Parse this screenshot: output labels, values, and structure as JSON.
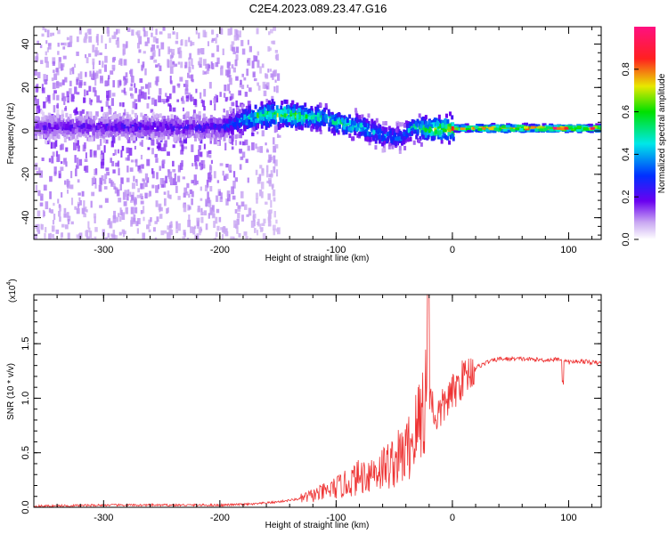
{
  "figure_title": "C2E4.2023.089.23.47.G16",
  "chart_data": [
    {
      "type": "heatmap",
      "title": "C2E4.2023.089.23.47.G16",
      "xlabel": "Height of straight line (km)",
      "ylabel": "Frequency (Hz)",
      "xlim": [
        -360,
        128
      ],
      "ylim": [
        -50,
        48
      ],
      "x_ticks": [
        -300,
        -200,
        -100,
        0,
        100
      ],
      "x_tick_labels": [
        "-300",
        "-200",
        "-100",
        "0",
        "100"
      ],
      "y_ticks": [
        -40,
        -20,
        0,
        20,
        40
      ],
      "y_tick_labels": [
        "-40",
        "-20",
        "0",
        "20",
        "40"
      ],
      "colorbar": {
        "label": "Normalized spectral amplitude",
        "range": [
          0,
          1
        ],
        "ticks": [
          0.0,
          0.2,
          0.4,
          0.6,
          0.8
        ],
        "tick_labels": [
          "0.0",
          "0.2",
          "0.4",
          "0.6",
          "0.8"
        ],
        "colormap": "rainbow (white-violet-blue-cyan-green-yellow-red-magenta)"
      },
      "ridge": {
        "x": [
          -360,
          -300,
          -200,
          -170,
          -150,
          -130,
          -110,
          -100,
          -80,
          -60,
          -45,
          -35,
          -25,
          0,
          50,
          100,
          128
        ],
        "frequency": [
          2,
          2,
          2,
          7,
          8,
          7,
          6,
          4,
          2,
          -2,
          -3,
          2,
          1,
          1,
          1,
          1,
          1
        ],
        "amplitude": [
          0.2,
          0.22,
          0.25,
          0.6,
          0.7,
          0.6,
          0.5,
          0.55,
          0.5,
          0.4,
          0.35,
          0.5,
          0.6,
          0.8,
          0.95,
          0.9,
          0.85
        ]
      }
    },
    {
      "type": "line",
      "xlabel": "Height of straight line (km)",
      "ylabel": "SNR (10 * v/v)",
      "y_multiplier_label": "(x10",
      "y_multiplier_exp": "4",
      "y_multiplier_close": ")",
      "xlim": [
        -360,
        128
      ],
      "ylim": [
        0,
        1.95
      ],
      "x_ticks": [
        -300,
        -200,
        -100,
        0,
        100
      ],
      "x_tick_labels": [
        "-300",
        "-200",
        "-100",
        "0",
        "100"
      ],
      "y_ticks": [
        0.0,
        0.5,
        1.0,
        1.5
      ],
      "y_tick_labels": [
        "0.0",
        "0.5",
        "1.0",
        "1.5"
      ],
      "line_color": "#ee3333",
      "series": [
        {
          "x": [
            -360,
            -300,
            -250,
            -200,
            -170,
            -150,
            -130,
            -110,
            -100,
            -90,
            -80,
            -70,
            -60,
            -50,
            -40,
            -30,
            -25,
            -20,
            -15,
            -10,
            -5,
            0,
            5,
            10,
            20,
            30,
            40,
            60,
            80,
            95,
            100,
            110,
            128
          ],
          "y": [
            0.01,
            0.02,
            0.02,
            0.02,
            0.03,
            0.05,
            0.08,
            0.14,
            0.18,
            0.22,
            0.28,
            0.32,
            0.36,
            0.42,
            0.5,
            0.72,
            0.95,
            1.1,
            0.82,
            0.88,
            0.98,
            1.04,
            1.12,
            1.2,
            1.28,
            1.33,
            1.36,
            1.36,
            1.35,
            1.36,
            1.33,
            1.34,
            1.32
          ]
        }
      ],
      "annotations": [
        {
          "x": -21,
          "peak": 1.95
        },
        {
          "x": 95,
          "dip": 1.1
        }
      ]
    }
  ]
}
